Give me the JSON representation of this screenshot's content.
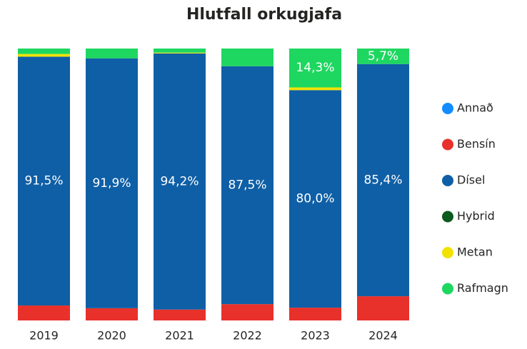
{
  "chart_data": {
    "type": "stacked_bar",
    "title": "Hlutfall orkugjafa",
    "categories": [
      "2019",
      "2020",
      "2021",
      "2022",
      "2023",
      "2024"
    ],
    "ylim": [
      0,
      100
    ],
    "series": [
      {
        "name": "Annað",
        "color": "#118DFF",
        "values": [
          0,
          0,
          0,
          0,
          0,
          0
        ]
      },
      {
        "name": "Bensín",
        "color": "#E8312A",
        "values": [
          5.5,
          4.5,
          4.0,
          6.0,
          4.7,
          8.9
        ]
      },
      {
        "name": "Dísel",
        "color": "#0F5FA6",
        "values": [
          91.5,
          91.9,
          94.2,
          87.5,
          80.0,
          85.4
        ],
        "value_labels": [
          "91,5%",
          "91,9%",
          "94,2%",
          "87,5%",
          "80,0%",
          "85,4%"
        ]
      },
      {
        "name": "Hybrid",
        "color": "#0B5A1E",
        "values": [
          0,
          0,
          0,
          0,
          0,
          0
        ]
      },
      {
        "name": "Metan",
        "color": "#F2E200",
        "values": [
          1.0,
          0,
          0.3,
          0,
          1.0,
          0
        ]
      },
      {
        "name": "Rafmagn",
        "color": "#1ED760",
        "values": [
          2.0,
          3.6,
          1.5,
          6.5,
          14.3,
          5.7
        ],
        "value_labels": [
          null,
          null,
          null,
          null,
          "14,3%",
          "5,7%"
        ]
      }
    ]
  }
}
